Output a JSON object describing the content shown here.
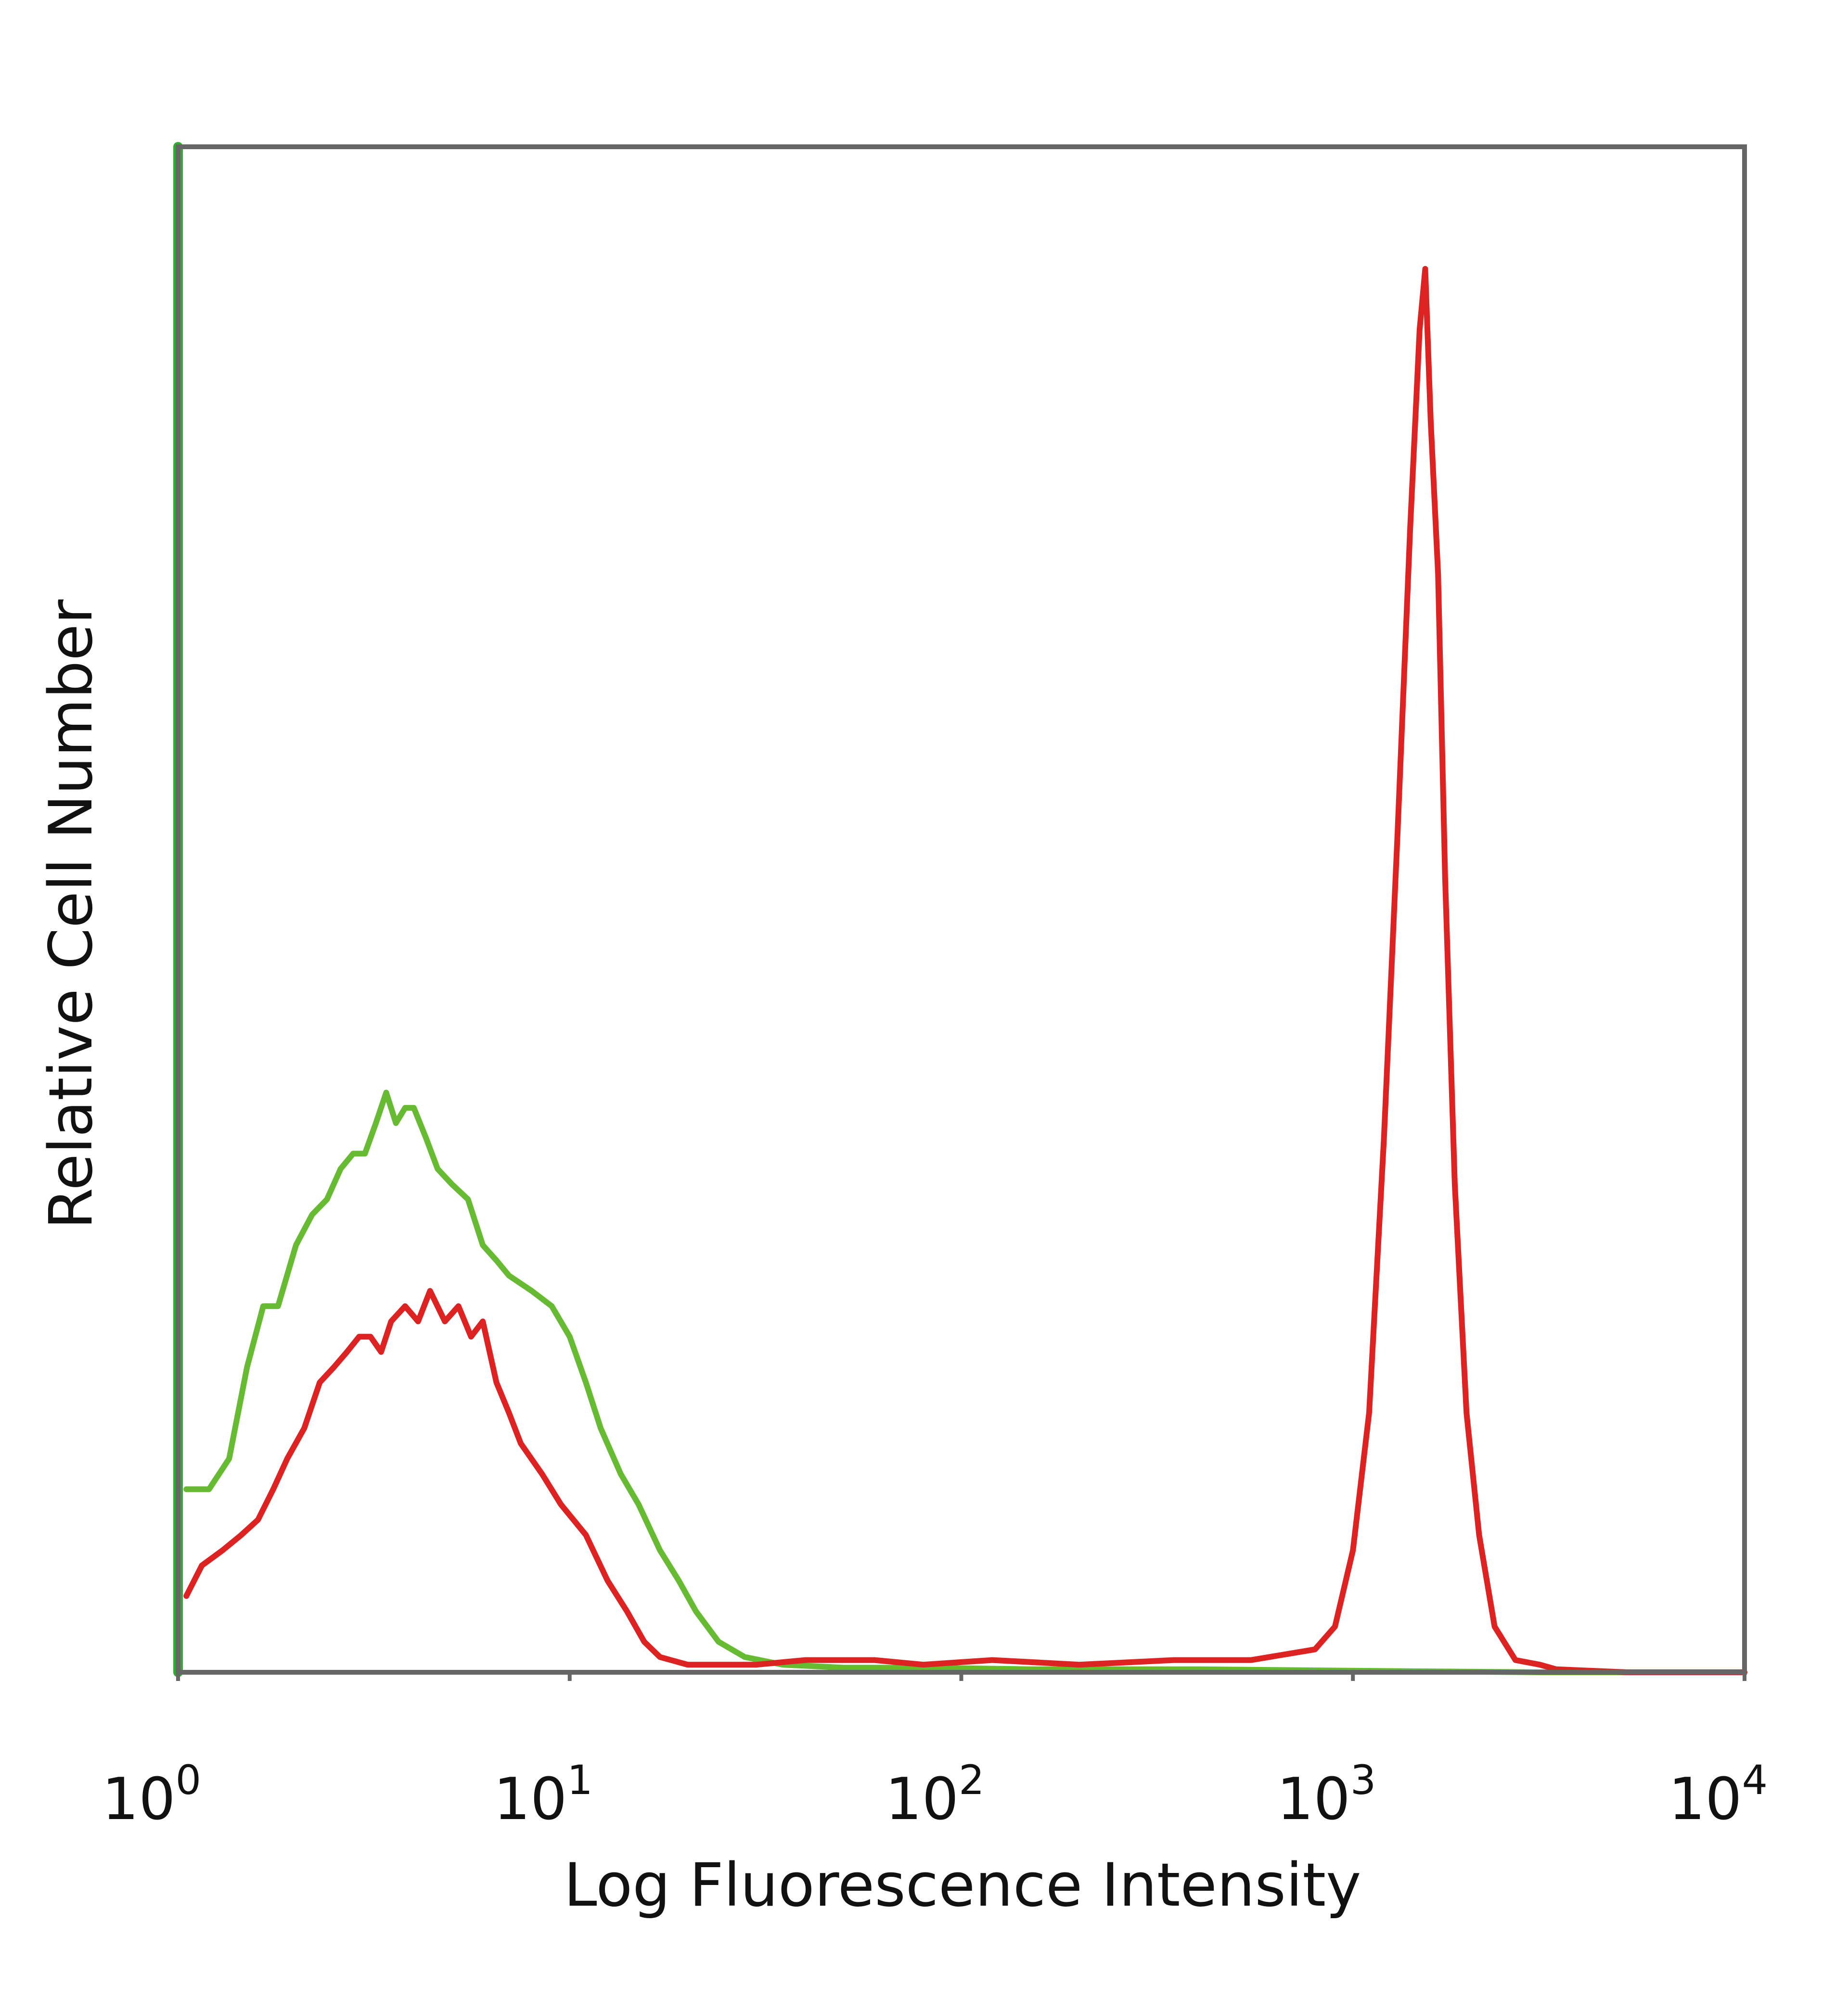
{
  "chart_data": {
    "type": "line",
    "title": "",
    "xlabel": "Log Fluorescence Intensity",
    "ylabel": "Relative Cell Number",
    "x_scale": "log",
    "xlim": [
      1,
      10000
    ],
    "ylim": [
      0,
      100
    ],
    "grid": false,
    "legend": "none",
    "x_ticks": [
      {
        "base": "10",
        "exp": "0"
      },
      {
        "base": "10",
        "exp": "1"
      },
      {
        "base": "10",
        "exp": "2"
      },
      {
        "base": "10",
        "exp": "3"
      },
      {
        "base": "10",
        "exp": "4"
      }
    ],
    "series": [
      {
        "color": "#66bb33",
        "points": [
          [
            1.05,
            12
          ],
          [
            1.2,
            12
          ],
          [
            1.35,
            14
          ],
          [
            1.5,
            20
          ],
          [
            1.65,
            24
          ],
          [
            1.8,
            24
          ],
          [
            2.0,
            28
          ],
          [
            2.2,
            30
          ],
          [
            2.4,
            31
          ],
          [
            2.6,
            33
          ],
          [
            2.8,
            34
          ],
          [
            3.0,
            34
          ],
          [
            3.2,
            36
          ],
          [
            3.4,
            38
          ],
          [
            3.6,
            36
          ],
          [
            3.8,
            37
          ],
          [
            4.0,
            37
          ],
          [
            4.3,
            35
          ],
          [
            4.6,
            33
          ],
          [
            5.0,
            32
          ],
          [
            5.5,
            31
          ],
          [
            6.0,
            28
          ],
          [
            6.5,
            27
          ],
          [
            7.0,
            26
          ],
          [
            8.0,
            25
          ],
          [
            9.0,
            24
          ],
          [
            10.0,
            22
          ],
          [
            11.0,
            19
          ],
          [
            12.0,
            16
          ],
          [
            13.5,
            13
          ],
          [
            15.0,
            11
          ],
          [
            17.0,
            8
          ],
          [
            19.0,
            6
          ],
          [
            21.0,
            4
          ],
          [
            24.0,
            2
          ],
          [
            28.0,
            1
          ],
          [
            35.0,
            0.5
          ],
          [
            50.0,
            0.3
          ],
          [
            80.0,
            0.3
          ],
          [
            150.0,
            0.2
          ],
          [
            400.0,
            0.2
          ],
          [
            1000.0,
            0.1
          ],
          [
            3000.0,
            0
          ],
          [
            10000.0,
            0
          ]
        ]
      },
      {
        "color": "#dd2222",
        "points": [
          [
            1.05,
            5
          ],
          [
            1.15,
            7
          ],
          [
            1.3,
            8
          ],
          [
            1.45,
            9
          ],
          [
            1.6,
            10
          ],
          [
            1.75,
            12
          ],
          [
            1.9,
            14
          ],
          [
            2.1,
            16
          ],
          [
            2.3,
            19
          ],
          [
            2.5,
            20
          ],
          [
            2.7,
            21
          ],
          [
            2.9,
            22
          ],
          [
            3.1,
            22
          ],
          [
            3.3,
            21
          ],
          [
            3.5,
            23
          ],
          [
            3.8,
            24
          ],
          [
            4.1,
            23
          ],
          [
            4.4,
            25
          ],
          [
            4.8,
            23
          ],
          [
            5.2,
            24
          ],
          [
            5.6,
            22
          ],
          [
            6.0,
            23
          ],
          [
            6.5,
            19
          ],
          [
            7.0,
            17
          ],
          [
            7.5,
            15
          ],
          [
            8.5,
            13
          ],
          [
            9.5,
            11
          ],
          [
            11.0,
            9
          ],
          [
            12.5,
            6
          ],
          [
            14.0,
            4
          ],
          [
            15.5,
            2
          ],
          [
            17.0,
            1
          ],
          [
            20.0,
            0.5
          ],
          [
            30.0,
            0.5
          ],
          [
            40.0,
            0.8
          ],
          [
            60.0,
            0.8
          ],
          [
            80.0,
            0.5
          ],
          [
            120.0,
            0.8
          ],
          [
            200.0,
            0.5
          ],
          [
            350.0,
            0.8
          ],
          [
            550.0,
            0.8
          ],
          [
            800.0,
            1.5
          ],
          [
            900.0,
            3
          ],
          [
            1000.0,
            8
          ],
          [
            1100.0,
            17
          ],
          [
            1200.0,
            35
          ],
          [
            1300.0,
            55
          ],
          [
            1400.0,
            75
          ],
          [
            1480.0,
            88
          ],
          [
            1530.0,
            92
          ],
          [
            1580.0,
            82
          ],
          [
            1650.0,
            72
          ],
          [
            1720.0,
            52
          ],
          [
            1820.0,
            32
          ],
          [
            1950.0,
            17
          ],
          [
            2100.0,
            9
          ],
          [
            2300.0,
            3
          ],
          [
            2600.0,
            0.8
          ],
          [
            3000.0,
            0.5
          ],
          [
            3300.0,
            0.2
          ],
          [
            5000.0,
            0
          ],
          [
            10000.0,
            0
          ]
        ]
      },
      {
        "color": "#33aa33",
        "points": [
          [
            1.0,
            100
          ],
          [
            1.0,
            0
          ]
        ]
      }
    ]
  }
}
